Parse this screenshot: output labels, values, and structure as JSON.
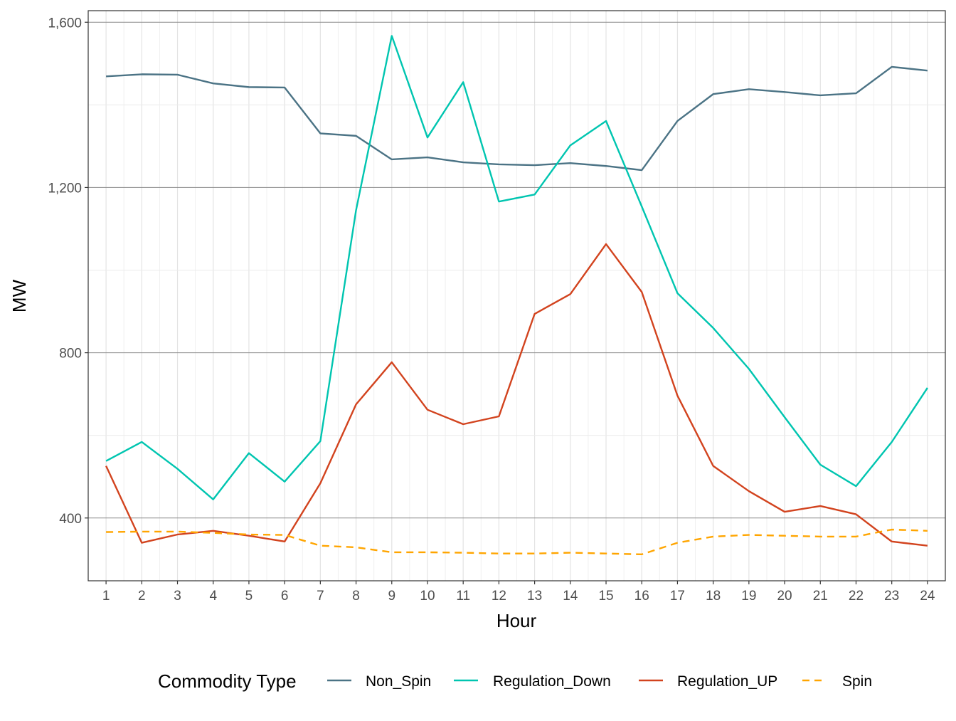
{
  "chart_data": {
    "type": "line",
    "xlabel": "Hour",
    "ylabel": "MW",
    "x": [
      1,
      2,
      3,
      4,
      5,
      6,
      7,
      8,
      9,
      10,
      11,
      12,
      13,
      14,
      15,
      16,
      17,
      18,
      19,
      20,
      21,
      22,
      23,
      24
    ],
    "xlim": [
      0.5,
      24.5
    ],
    "ylim": [
      248,
      1628
    ],
    "yticks": [
      400,
      800,
      1200,
      1600
    ],
    "ytick_labels": [
      "400",
      "800",
      "1,200",
      "1,600"
    ],
    "grid": true,
    "legend": {
      "title": "Commodity Type",
      "position": "bottom"
    },
    "series": [
      {
        "name": "Non_Spin",
        "color": "#4b7385",
        "dash": "solid",
        "values": [
          1469,
          1474,
          1473,
          1452,
          1443,
          1442,
          1331,
          1325,
          1268,
          1273,
          1261,
          1256,
          1254,
          1259,
          1252,
          1242,
          1361,
          1426,
          1438,
          1431,
          1423,
          1428,
          1492,
          1483
        ]
      },
      {
        "name": "Regulation_Down",
        "color": "#00c5b0",
        "dash": "solid",
        "values": [
          538,
          584,
          519,
          445,
          557,
          488,
          586,
          1145,
          1567,
          1321,
          1455,
          1166,
          1183,
          1302,
          1361,
          1154,
          944,
          860,
          761,
          644,
          529,
          477,
          584,
          715
        ]
      },
      {
        "name": "Regulation_UP",
        "color": "#d2431e",
        "dash": "solid",
        "values": [
          526,
          340,
          360,
          369,
          357,
          343,
          484,
          675,
          777,
          662,
          627,
          646,
          894,
          942,
          1063,
          947,
          696,
          526,
          465,
          415,
          429,
          409,
          343,
          333
        ]
      },
      {
        "name": "Spin",
        "color": "#ffa500",
        "dash": "dashed",
        "values": [
          366,
          367,
          367,
          364,
          360,
          359,
          333,
          329,
          317,
          317,
          316,
          314,
          314,
          316,
          314,
          312,
          340,
          355,
          359,
          357,
          355,
          355,
          372,
          369
        ]
      }
    ]
  }
}
